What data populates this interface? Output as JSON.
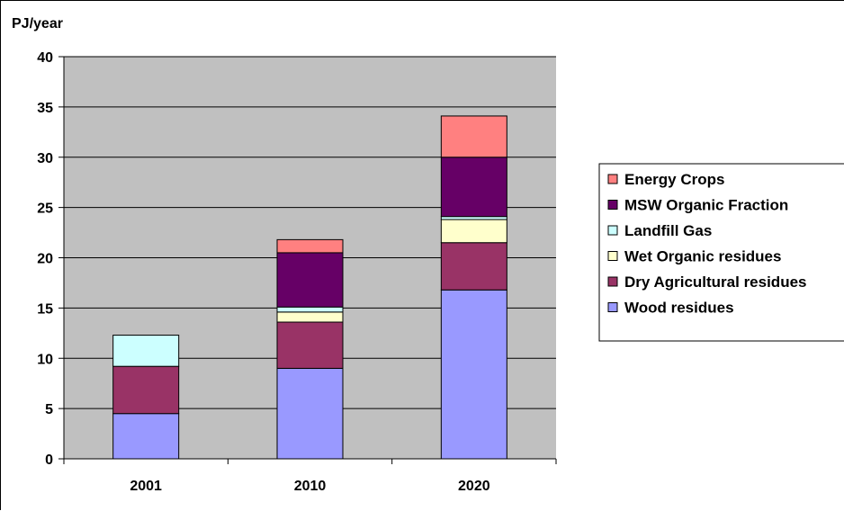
{
  "chart_data": {
    "type": "bar",
    "stacked": true,
    "title": "",
    "xlabel": "",
    "ylabel": "PJ/year",
    "ylim": [
      0,
      40
    ],
    "yticks": [
      0,
      5,
      10,
      15,
      20,
      25,
      30,
      35,
      40
    ],
    "grid": true,
    "legend_position": "right",
    "plot_background": "#c0c0c0",
    "categories": [
      "2001",
      "2010",
      "2020"
    ],
    "series": [
      {
        "name": "Wood residues",
        "color": "#9999ff",
        "values": [
          4.5,
          9.0,
          16.8
        ]
      },
      {
        "name": "Dry Agricultural residues",
        "color": "#993366",
        "values": [
          4.7,
          4.6,
          4.7
        ]
      },
      {
        "name": "Wet Organic residues",
        "color": "#ffffcc",
        "values": [
          0.0,
          1.0,
          2.3
        ]
      },
      {
        "name": "Landfill Gas",
        "color": "#ccffff",
        "values": [
          3.1,
          0.5,
          0.3
        ]
      },
      {
        "name": "MSW Organic Fraction",
        "color": "#660066",
        "values": [
          0.0,
          5.4,
          5.9
        ]
      },
      {
        "name": "Energy Crops",
        "color": "#ff8080",
        "values": [
          0.0,
          1.3,
          4.1
        ]
      }
    ]
  }
}
